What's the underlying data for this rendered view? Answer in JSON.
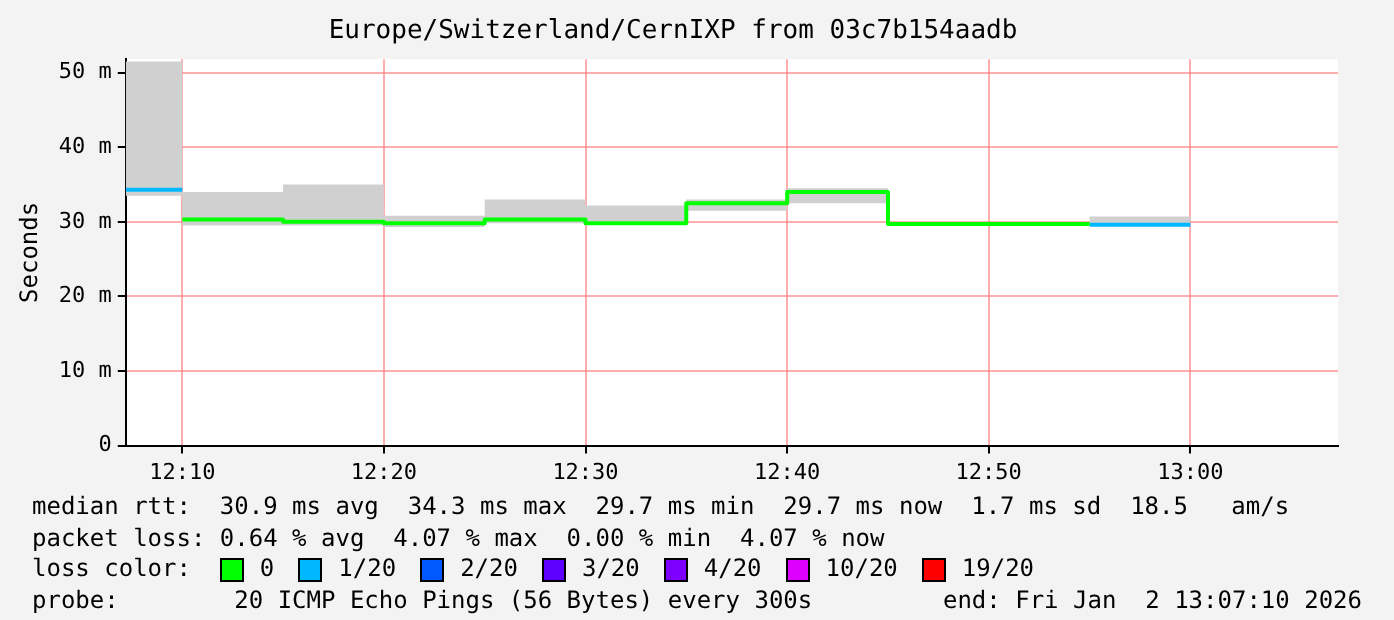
{
  "chart_data": {
    "type": "step",
    "title": "Europe/Switzerland/CernIXP from 03c7b154aadb",
    "ylabel": "Seconds",
    "x": [
      12.12,
      12.1667,
      12.25,
      12.3333,
      12.4167,
      12.5,
      12.5833,
      12.6667,
      12.75,
      12.8333,
      12.9167,
      13.0
    ],
    "series": [
      {
        "color": "#d0d0d0",
        "values": [
          null,
          null,
          null,
          null,
          null,
          null,
          null,
          null,
          null,
          null,
          null,
          null
        ],
        "lower": [
          33.5,
          29.5,
          29.5,
          29.3,
          29.8,
          29.6,
          31.5,
          32.5,
          29.6,
          29.6,
          29.5,
          29.5
        ],
        "upper": [
          51.5,
          34,
          35,
          30.8,
          33,
          32.2,
          33,
          34.5,
          29.9,
          29.9,
          30.7,
          30.7
        ]
      },
      {
        "name": "0",
        "color": "#00ff00",
        "x": [
          12.1667,
          12.25,
          12.3333,
          12.4167,
          12.5,
          12.5833,
          12.6667,
          12.75,
          12.8333,
          12.9167
        ],
        "values": [
          30.3,
          30.0,
          29.8,
          30.3,
          29.8,
          32.5,
          34.0,
          29.7,
          29.7,
          29.7
        ]
      },
      {
        "name": "1/20",
        "color": "#00b8ff",
        "x": [
          12.12,
          12.1667,
          12.17,
          12.9167,
          13.0
        ],
        "values": [
          34.3,
          34.3,
          null,
          29.6,
          29.6
        ]
      },
      {
        "name": "2/20",
        "color": "#0059ff",
        "values": [
          null,
          null,
          null,
          null,
          null,
          null,
          null,
          null,
          null,
          null,
          null,
          null
        ]
      },
      {
        "name": "3/20",
        "color": "#5e00ff",
        "values": [
          null,
          null,
          null,
          null,
          null,
          null,
          null,
          null,
          null,
          null,
          null,
          null
        ]
      },
      {
        "name": "4/20",
        "color": "#7e00ff",
        "values": [
          null,
          null,
          null,
          null,
          null,
          null,
          null,
          null,
          null,
          null,
          null,
          null
        ]
      },
      {
        "name": "10/20",
        "color": "#dd00ff",
        "values": [
          null,
          null,
          null,
          null,
          null,
          null,
          null,
          null,
          null,
          null,
          null,
          null
        ]
      },
      {
        "name": "19/20",
        "color": "#ff0000",
        "values": [
          null,
          null,
          null,
          null,
          null,
          null,
          null,
          null,
          null,
          null,
          null,
          null
        ]
      }
    ],
    "xlim": [
      12.12,
      13.122
    ],
    "xticks": [
      {
        "value": 12.1667,
        "label": "12:10"
      },
      {
        "value": 12.3333,
        "label": "12:20"
      },
      {
        "value": 12.5,
        "label": "12:30"
      },
      {
        "value": 12.6667,
        "label": "12:40"
      },
      {
        "value": 12.8333,
        "label": "12:50"
      },
      {
        "value": 13.0,
        "label": "13:00"
      }
    ],
    "ylim": [
      0,
      51.8
    ],
    "yticks": [
      0,
      {
        "value": 10,
        "label": "10 m"
      },
      {
        "value": 20,
        "label": "20 m"
      },
      {
        "value": 30,
        "label": "30 m"
      },
      {
        "value": 40,
        "label": "40 m"
      },
      {
        "value": 50,
        "label": "50 m"
      }
    ],
    "grid": true,
    "marker": "none",
    "line_style": "solid",
    "legend": "bottom",
    "legend_title": "loss color:",
    "annotations": [
      "median rtt:  30.9 ms avg  34.3 ms max  29.7 ms min  29.7 ms now  1.7 ms sd  18.5   am/s",
      "packet loss: 0.64 % avg  4.07 % max  0.00 % min  4.07 % now",
      "probe:        20 ICMP Echo Pings (56 Bytes) every 300s",
      "end: Fri Jan  2 13:07:10 2026"
    ]
  }
}
